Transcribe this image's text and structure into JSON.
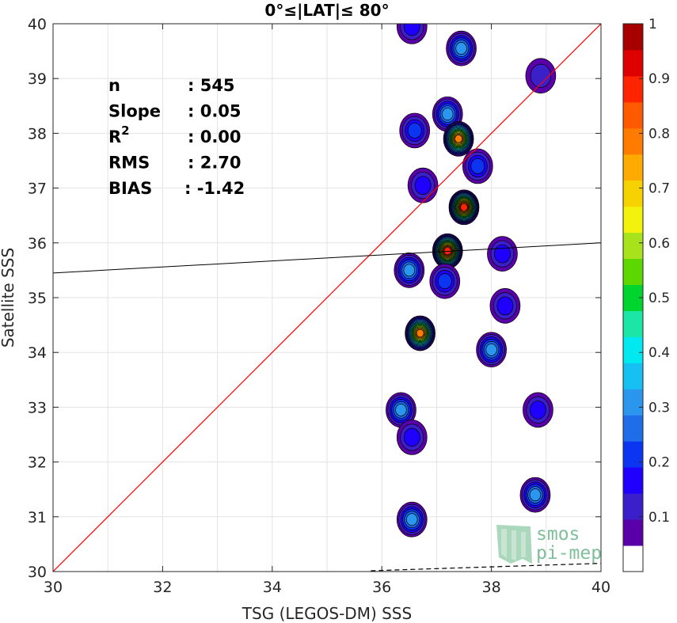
{
  "chart_data": {
    "type": "heatmap",
    "title": "0°≤|LAT|≤ 80°",
    "xlabel": "TSG (LEGOS-DM) SSS",
    "ylabel": "Satellite SSS",
    "xlim": [
      30,
      40
    ],
    "ylim": [
      30,
      40
    ],
    "x_ticks": [
      "30",
      "32",
      "34",
      "36",
      "38",
      "40"
    ],
    "y_ticks": [
      "30",
      "31",
      "32",
      "33",
      "34",
      "35",
      "36",
      "37",
      "38",
      "39",
      "40"
    ],
    "grid": true,
    "colorbar": {
      "ticks": [
        "0.1",
        "0.2",
        "0.3",
        "0.4",
        "0.5",
        "0.6",
        "0.7",
        "0.8",
        "0.9",
        "1"
      ],
      "range": [
        0,
        1
      ],
      "colors": [
        "#ffffff",
        "#5a00a8",
        "#3b1fc9",
        "#1f00ff",
        "#0b35f0",
        "#1f6de8",
        "#2a96ee",
        "#16c0f2",
        "#00e8f0",
        "#1ce6a6",
        "#00d42f",
        "#5cd800",
        "#a8e21b",
        "#f2f20c",
        "#f5d200",
        "#ffaa00",
        "#ff7c00",
        "#ff5a00",
        "#ff2400",
        "#dc0000",
        "#a60000"
      ]
    },
    "stats": [
      {
        "label": "n",
        "value": ": 545"
      },
      {
        "label": "Slope",
        "value": ": 0.05"
      },
      {
        "label": "R²",
        "value": ": 0.00"
      },
      {
        "label": "RMS",
        "value": ": 2.70"
      },
      {
        "label": "BIAS",
        "value": ": -1.42"
      }
    ],
    "reference_line": {
      "name": "1:1",
      "color": "#ff0000",
      "x": [
        30,
        40
      ],
      "y": [
        30,
        40
      ]
    },
    "fit_line": {
      "color": "#000000",
      "x": [
        30,
        40
      ],
      "y": [
        35.45,
        36.0
      ]
    },
    "dashed_line": {
      "color": "#000000",
      "x": [
        35.8,
        40
      ],
      "y": [
        30.0,
        30.15
      ]
    },
    "density_clusters": [
      {
        "x": 36.55,
        "y": 39.95,
        "peak": 0.15
      },
      {
        "x": 37.45,
        "y": 39.55,
        "peak": 0.28
      },
      {
        "x": 38.9,
        "y": 39.05,
        "peak": 0.1
      },
      {
        "x": 37.2,
        "y": 38.35,
        "peak": 0.28
      },
      {
        "x": 36.6,
        "y": 38.05,
        "peak": 0.2
      },
      {
        "x": 37.4,
        "y": 37.9,
        "peak": 0.8
      },
      {
        "x": 37.75,
        "y": 37.4,
        "peak": 0.22
      },
      {
        "x": 36.75,
        "y": 37.05,
        "peak": 0.15
      },
      {
        "x": 37.5,
        "y": 36.65,
        "peak": 0.88
      },
      {
        "x": 37.2,
        "y": 35.85,
        "peak": 0.92
      },
      {
        "x": 38.2,
        "y": 35.8,
        "peak": 0.15
      },
      {
        "x": 36.5,
        "y": 35.5,
        "peak": 0.3
      },
      {
        "x": 37.15,
        "y": 35.3,
        "peak": 0.22
      },
      {
        "x": 38.25,
        "y": 34.85,
        "peak": 0.15
      },
      {
        "x": 36.7,
        "y": 34.35,
        "peak": 0.8
      },
      {
        "x": 38.0,
        "y": 34.05,
        "peak": 0.3
      },
      {
        "x": 36.35,
        "y": 32.95,
        "peak": 0.3
      },
      {
        "x": 38.85,
        "y": 32.95,
        "peak": 0.15
      },
      {
        "x": 36.55,
        "y": 32.45,
        "peak": 0.15
      },
      {
        "x": 38.8,
        "y": 31.4,
        "peak": 0.3
      },
      {
        "x": 36.55,
        "y": 30.95,
        "peak": 0.3
      }
    ]
  },
  "logo": {
    "line1": "smos",
    "line2": "pi-mep"
  }
}
